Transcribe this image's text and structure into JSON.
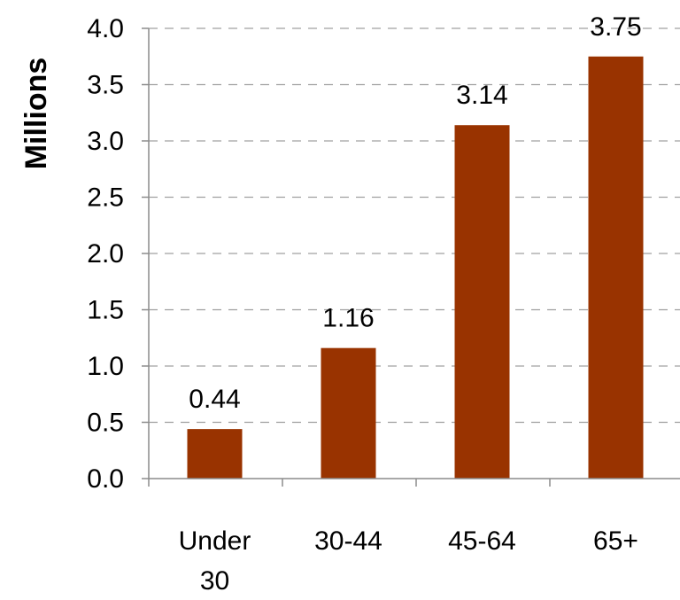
{
  "chart_data": {
    "type": "bar",
    "title": "",
    "xlabel": "",
    "ylabel": "Millions",
    "categories": [
      "Under 30",
      "30-44",
      "45-64",
      "65+"
    ],
    "category_lines": [
      [
        "Under",
        "30"
      ],
      [
        "30-44"
      ],
      [
        "45-64"
      ],
      [
        "65+"
      ]
    ],
    "values": [
      0.44,
      1.16,
      3.14,
      3.75
    ],
    "data_labels": [
      "0.44",
      "1.16",
      "3.14",
      "3.75"
    ],
    "ylim": [
      0,
      4.0
    ],
    "yticks": [
      0,
      0.5,
      1.0,
      1.5,
      2.0,
      2.5,
      3.0,
      3.5,
      4.0
    ],
    "ytick_labels": [
      "0.0",
      "0.5",
      "1.0",
      "1.5",
      "2.0",
      "2.5",
      "3.0",
      "3.5",
      "4.0"
    ],
    "grid": "horizontal-dashed",
    "legend": "none",
    "bar_color": "#993300",
    "grid_color": "#a0a0a0",
    "axis_color": "#8c8c8c"
  }
}
